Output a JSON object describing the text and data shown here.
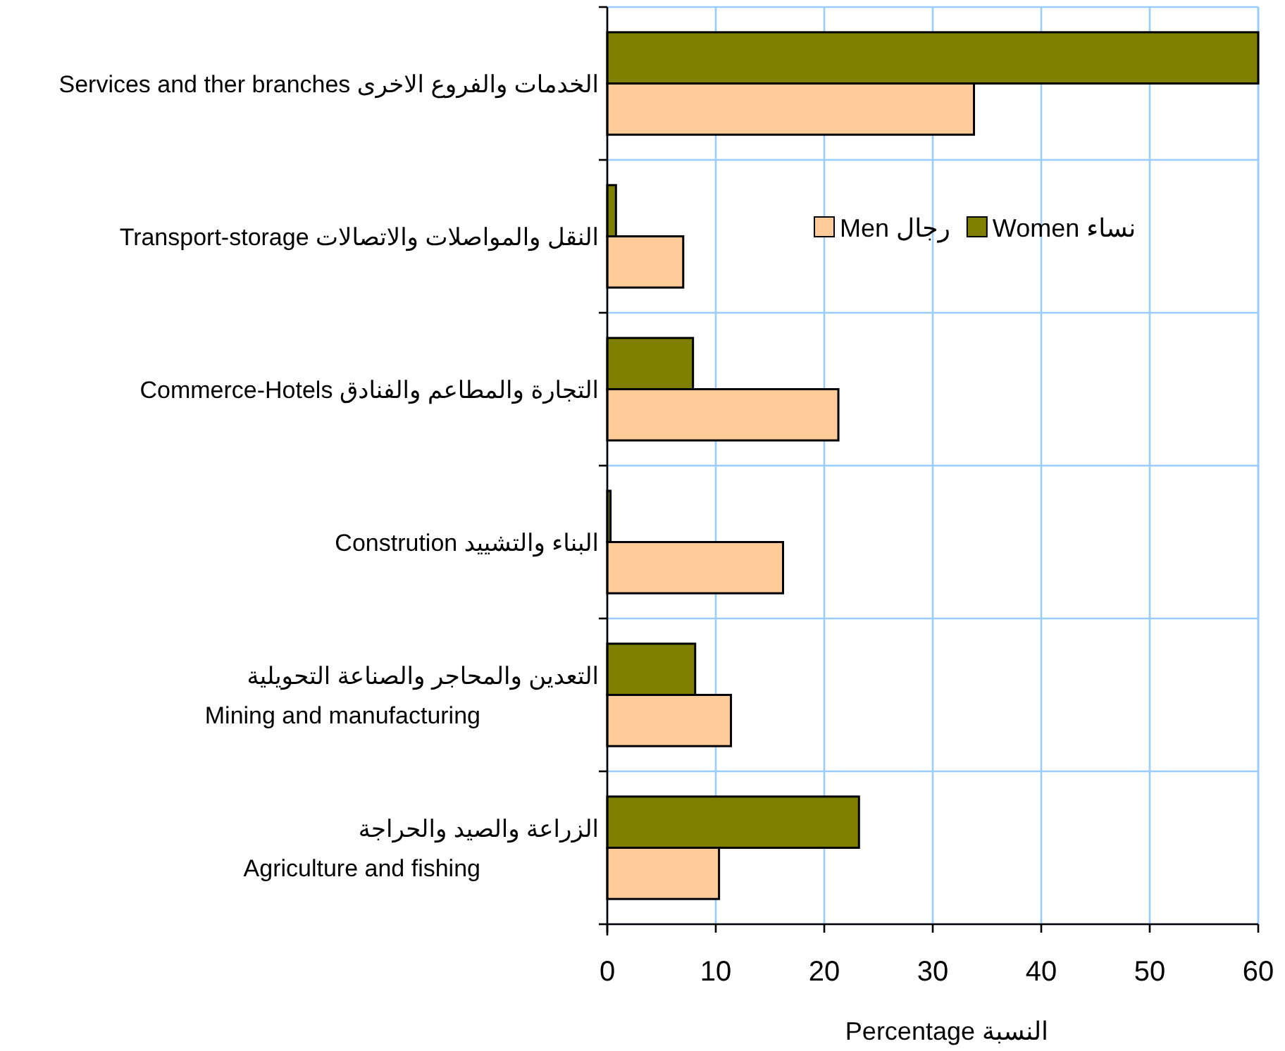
{
  "chart_data": {
    "type": "bar",
    "orientation": "horizontal",
    "categories": [
      "Services and ther branches الخدمات والفروع الاخرى",
      "Transport-storage  النقل والمواصلات والاتصالات",
      "Commerce-Hotels التجارة والمطاعم والفنادق",
      "Constrution     البناء والتشييد",
      "التعدين والمحاجر والصناعة التحويلية\nMining and manufacturing",
      "الزراعة والصيد والحراجة\nAgriculture and fishing"
    ],
    "series": [
      {
        "name": "Men  رجال",
        "color": "#ffcc99",
        "values": [
          33.8,
          7.0,
          21.3,
          16.2,
          11.4,
          10.3
        ]
      },
      {
        "name": "Women  نساء",
        "color": "#808000",
        "values": [
          60,
          0.8,
          7.9,
          0.3,
          8.1,
          23.2
        ]
      }
    ],
    "xlim": [
      0,
      60
    ],
    "xticks": [
      0,
      10,
      20,
      30,
      40,
      50,
      60
    ],
    "xlabel": "Percentage     النسبة",
    "grid": true,
    "legend": "top right"
  }
}
